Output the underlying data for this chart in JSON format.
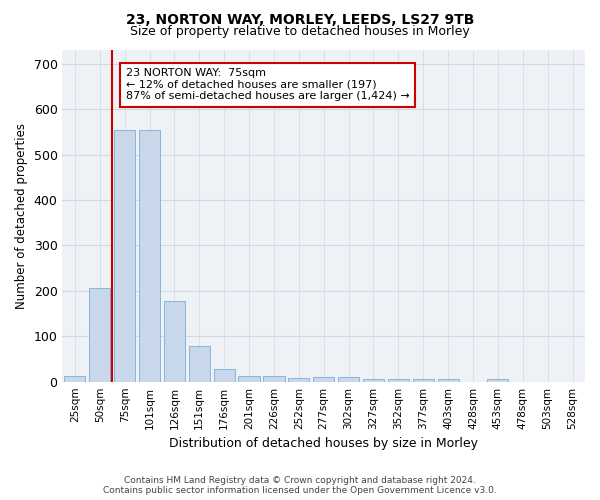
{
  "title1": "23, NORTON WAY, MORLEY, LEEDS, LS27 9TB",
  "title2": "Size of property relative to detached houses in Morley",
  "xlabel": "Distribution of detached houses by size in Morley",
  "ylabel": "Number of detached properties",
  "footer1": "Contains HM Land Registry data © Crown copyright and database right 2024.",
  "footer2": "Contains public sector information licensed under the Open Government Licence v3.0.",
  "annotation_title": "23 NORTON WAY:  75sqm",
  "annotation_line1": "← 12% of detached houses are smaller (197)",
  "annotation_line2": "87% of semi-detached houses are larger (1,424) →",
  "subject_bar_index": 2,
  "red_line_x": 1.5,
  "bar_labels": [
    "25sqm",
    "50sqm",
    "75sqm",
    "101sqm",
    "126sqm",
    "151sqm",
    "176sqm",
    "201sqm",
    "226sqm",
    "252sqm",
    "277sqm",
    "302sqm",
    "327sqm",
    "352sqm",
    "377sqm",
    "403sqm",
    "428sqm",
    "453sqm",
    "478sqm",
    "503sqm",
    "528sqm"
  ],
  "bar_values": [
    13,
    207,
    553,
    553,
    178,
    78,
    28,
    13,
    13,
    8,
    10,
    10,
    7,
    5,
    5,
    5,
    0,
    5,
    0,
    0,
    0
  ],
  "bar_color": "#c8d8ea",
  "bar_edge_color": "#7bafd4",
  "highlight_color": "#cc0000",
  "background_color": "#eef2f7",
  "grid_color": "#d0d8e0",
  "ylim": [
    0,
    730
  ],
  "yticks": [
    0,
    100,
    200,
    300,
    400,
    500,
    600,
    700
  ]
}
